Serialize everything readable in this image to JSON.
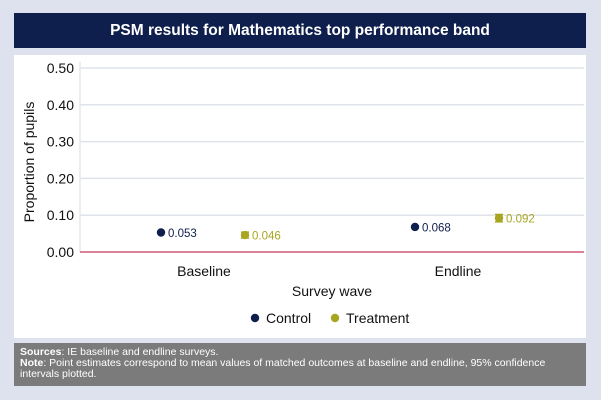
{
  "title": "PSM results for Mathematics top performance band",
  "chart_data": {
    "type": "scatter",
    "categories": [
      "Baseline",
      "Endline"
    ],
    "xlabel": "Survey wave",
    "ylabel": "Proportion of pupils",
    "ylim": [
      0,
      0.5
    ],
    "yticks": [
      "0.00",
      "0.10",
      "0.20",
      "0.30",
      "0.40",
      "0.50"
    ],
    "yticks_values": [
      0,
      0.1,
      0.2,
      0.3,
      0.4,
      0.5
    ],
    "reference_line": 0,
    "grid": true,
    "legend_position": "bottom",
    "series": [
      {
        "name": "Control",
        "color": "#0f1f4d",
        "values": [
          0.053,
          0.068
        ],
        "labels": [
          "0.053",
          "0.068"
        ],
        "ci": [
          [
            0.053,
            0.053
          ],
          [
            0.068,
            0.068
          ]
        ]
      },
      {
        "name": "Treatment",
        "color": "#a8a521",
        "values": [
          0.046,
          0.092
        ],
        "labels": [
          "0.046",
          "0.092"
        ],
        "ci": [
          [
            0.038,
            0.054
          ],
          [
            0.082,
            0.102
          ]
        ]
      }
    ]
  },
  "notes": {
    "sources_label": "Sources",
    "sources_text": ": IE baseline and endline surveys.",
    "note_label": "Note",
    "note_text": ": Point estimates correspond to mean values of matched outcomes at baseline and endline, 95% confidence intervals plotted."
  },
  "colors": {
    "title_bg": "#0f1f4d",
    "page_bg": "#dde2ee",
    "zero_line": "#c8375a",
    "notes_bg": "#7b7b7b"
  }
}
